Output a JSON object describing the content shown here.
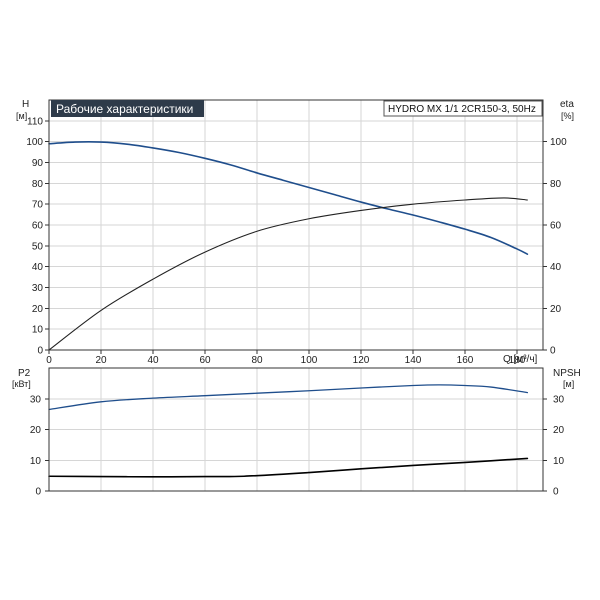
{
  "title": "Рабочие характеристики",
  "model": "HYDRO MX 1/1 2CR150-3, 50Hz",
  "colors": {
    "head": "#1f4e8c",
    "eff": "#222222",
    "power": "#1f4e8c",
    "npsh": "#000000",
    "titlebar": "#2e3b4a",
    "grid": "#d6d6d6"
  },
  "chart_data": [
    {
      "type": "line",
      "panel": "top",
      "xlabel": "Q [м³/ч]",
      "xlim": [
        0,
        190
      ],
      "xticks": [
        0,
        20,
        40,
        60,
        80,
        100,
        120,
        140,
        160,
        180
      ],
      "ylabel_left": "H",
      "ylabel_left_unit": "[м]",
      "ylim_left": [
        0,
        120
      ],
      "yticks_left": [
        0,
        10,
        20,
        30,
        40,
        50,
        60,
        70,
        80,
        90,
        100,
        110
      ],
      "ylabel_right": "eta",
      "ylabel_right_unit": "[%]",
      "ylim_right": [
        0,
        120
      ],
      "yticks_right": [
        0,
        20,
        40,
        60,
        80,
        100
      ],
      "grid": true,
      "series": [
        {
          "key": "head",
          "axis": "left",
          "x": [
            0,
            10,
            20,
            30,
            40,
            50,
            60,
            70,
            80,
            90,
            100,
            110,
            120,
            130,
            140,
            150,
            160,
            170,
            180,
            184
          ],
          "values": [
            99,
            99.8,
            99.8,
            98.8,
            97,
            94.8,
            92,
            88.8,
            85,
            81.5,
            78,
            74.5,
            71,
            67.8,
            64.8,
            61.5,
            58,
            54,
            48.5,
            46
          ]
        },
        {
          "key": "eta",
          "axis": "right",
          "x": [
            0,
            20,
            40,
            60,
            80,
            100,
            120,
            140,
            160,
            175,
            184
          ],
          "values": [
            0,
            19,
            34,
            47,
            57,
            63,
            67,
            70,
            72,
            73,
            72
          ]
        }
      ]
    },
    {
      "type": "line",
      "panel": "bottom",
      "xlim": [
        0,
        190
      ],
      "ylabel_left": "P2",
      "ylabel_left_unit": "[кВт]",
      "ylim_left": [
        0,
        40
      ],
      "yticks_left": [
        0,
        10,
        20,
        30
      ],
      "ylabel_right": "NPSH",
      "ylabel_right_unit": "[м]",
      "ylim_right": [
        0,
        40
      ],
      "yticks_right": [
        0,
        10,
        20,
        30
      ],
      "grid": true,
      "series": [
        {
          "key": "P2",
          "axis": "left",
          "x": [
            0,
            20,
            40,
            60,
            80,
            100,
            120,
            140,
            150,
            160,
            170,
            184
          ],
          "values": [
            26.5,
            29,
            30.2,
            31,
            31.8,
            32.6,
            33.5,
            34.3,
            34.5,
            34.3,
            33.8,
            32
          ]
        },
        {
          "key": "NPSH",
          "axis": "right",
          "x": [
            0,
            20,
            40,
            60,
            75,
            100,
            120,
            140,
            160,
            184
          ],
          "values": [
            4.8,
            4.7,
            4.6,
            4.7,
            4.8,
            6,
            7.2,
            8.3,
            9.3,
            10.6
          ]
        }
      ]
    }
  ]
}
